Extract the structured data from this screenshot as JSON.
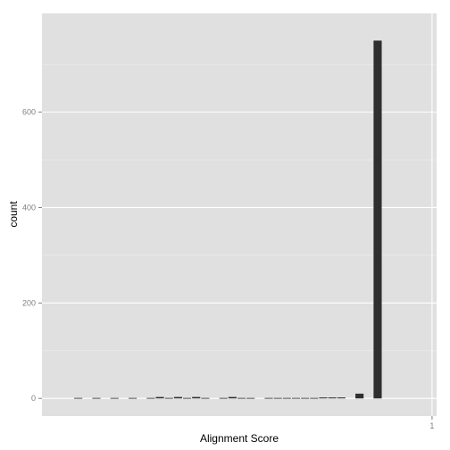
{
  "colors": {
    "panel_background": "#e0e0e0",
    "grid_major": "#ffffff",
    "grid_minor": "#eeeeee",
    "bar_fill": "#2f2f2f",
    "tick_text": "#7f7f7f"
  },
  "chart_data": {
    "type": "bar",
    "title": "",
    "xlabel": "Alignment Score",
    "ylabel": "count",
    "grid": true,
    "legend": "none",
    "xlim": [
      -0.003,
      0.0405
    ],
    "ylim": [
      -37,
      807
    ],
    "x_ticks": [
      {
        "value": 0.04,
        "label": "1"
      }
    ],
    "y_ticks": [
      {
        "value": 0,
        "label": "0"
      },
      {
        "value": 200,
        "label": "200"
      },
      {
        "value": 400,
        "label": "400"
      },
      {
        "value": 600,
        "label": "600"
      }
    ],
    "bin_width": 0.001,
    "bins": [
      {
        "x": 0.0,
        "count": 0
      },
      {
        "x": 0.001,
        "count": 1
      },
      {
        "x": 0.002,
        "count": 0
      },
      {
        "x": 0.003,
        "count": 1
      },
      {
        "x": 0.004,
        "count": 0
      },
      {
        "x": 0.005,
        "count": 1
      },
      {
        "x": 0.006,
        "count": 0
      },
      {
        "x": 0.007,
        "count": 1
      },
      {
        "x": 0.008,
        "count": 0
      },
      {
        "x": 0.009,
        "count": 1
      },
      {
        "x": 0.01,
        "count": 3
      },
      {
        "x": 0.011,
        "count": 1
      },
      {
        "x": 0.012,
        "count": 3
      },
      {
        "x": 0.013,
        "count": 1
      },
      {
        "x": 0.014,
        "count": 3
      },
      {
        "x": 0.015,
        "count": 1
      },
      {
        "x": 0.016,
        "count": 0
      },
      {
        "x": 0.017,
        "count": 1
      },
      {
        "x": 0.018,
        "count": 3
      },
      {
        "x": 0.019,
        "count": 1
      },
      {
        "x": 0.02,
        "count": 1
      },
      {
        "x": 0.021,
        "count": 0
      },
      {
        "x": 0.022,
        "count": 1
      },
      {
        "x": 0.023,
        "count": 1
      },
      {
        "x": 0.024,
        "count": 1
      },
      {
        "x": 0.025,
        "count": 1
      },
      {
        "x": 0.026,
        "count": 1
      },
      {
        "x": 0.027,
        "count": 1
      },
      {
        "x": 0.028,
        "count": 2
      },
      {
        "x": 0.029,
        "count": 2
      },
      {
        "x": 0.03,
        "count": 2
      },
      {
        "x": 0.031,
        "count": 0
      },
      {
        "x": 0.032,
        "count": 10
      },
      {
        "x": 0.033,
        "count": 0
      },
      {
        "x": 0.034,
        "count": 750
      }
    ]
  }
}
